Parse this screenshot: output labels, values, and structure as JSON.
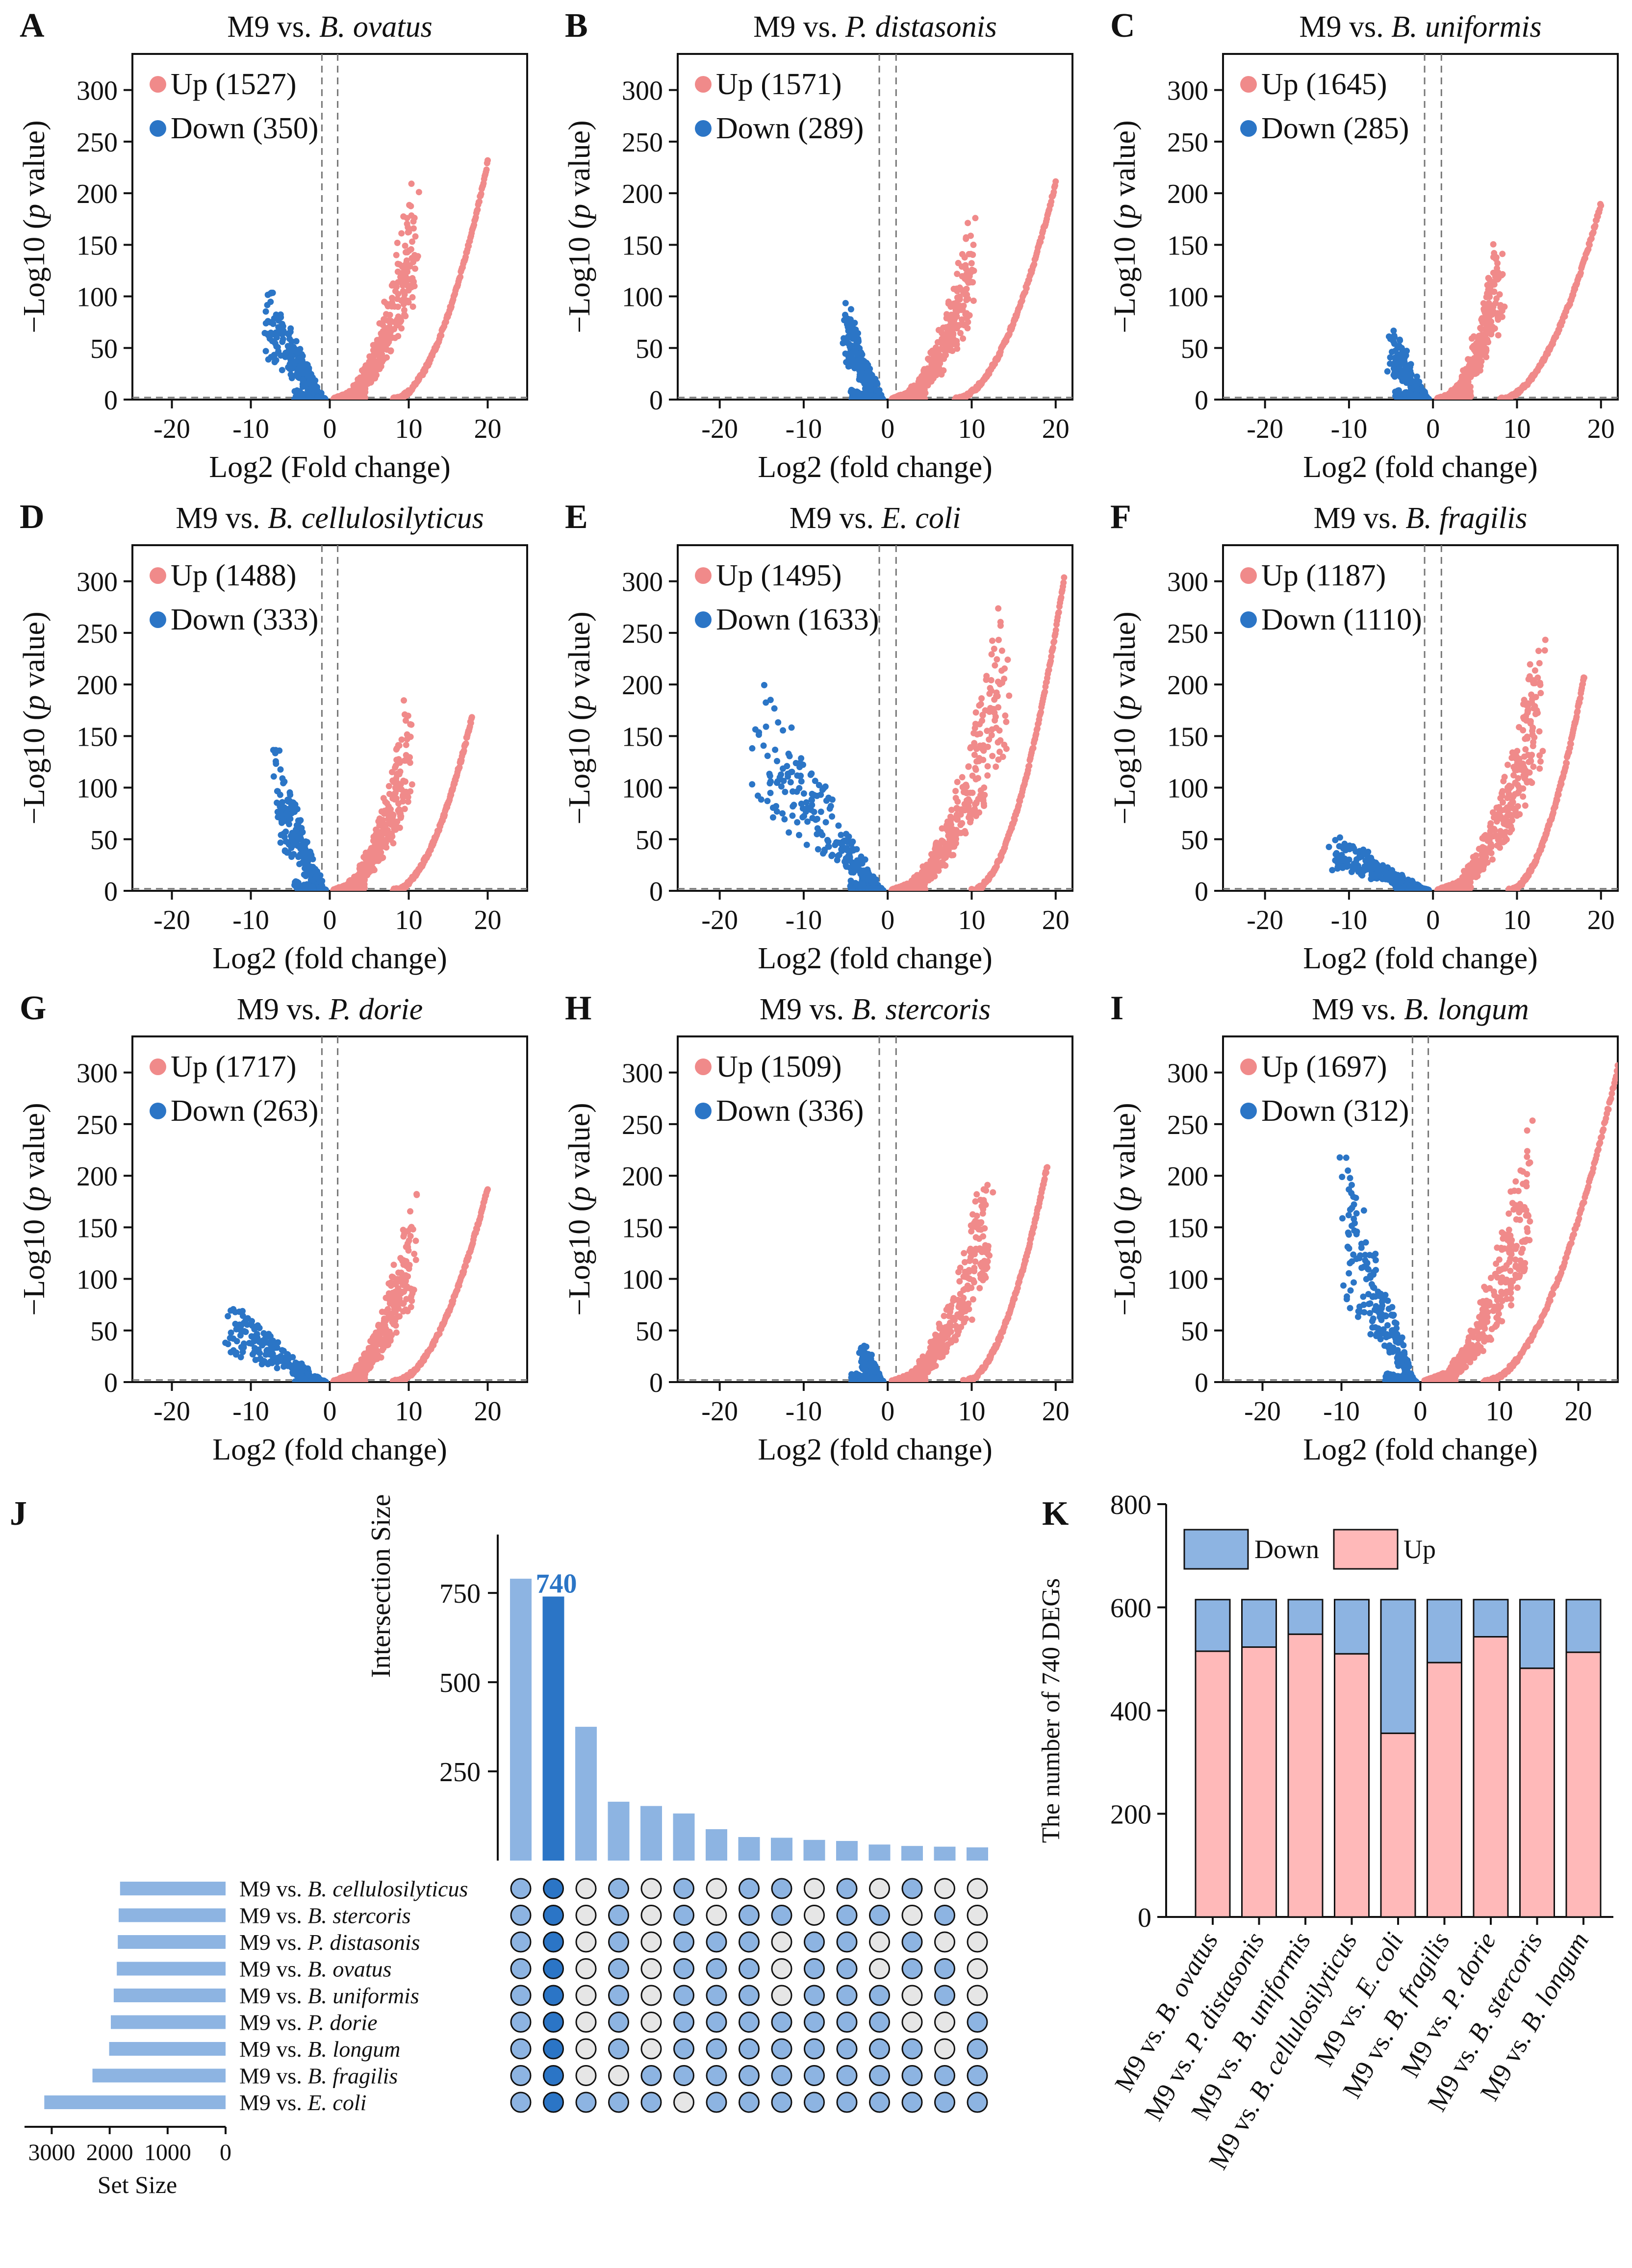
{
  "colors": {
    "up": "#f08a8a",
    "down": "#2b75c6",
    "bar_light": "#8db4e2",
    "bar_dark": "#2b75c6",
    "up_fill": "#ffb9b9",
    "down_fill": "#8db4e2",
    "dot_empty": "#e6e6e6"
  },
  "volcano_panels": [
    {
      "letter": "A",
      "prefix": "M9 vs. ",
      "species": "B. ovatus",
      "xlabel": "Log2 (Fold change)",
      "up_label": "Up (1527)",
      "down_label": "Down (350)",
      "up_count": 1527,
      "down_count": 350,
      "up_seed": 11,
      "down_seed": 12,
      "up_arm": {
        "x_start": 1.0,
        "x_end": 11.0,
        "max_y": 235
      },
      "up_curve": {
        "x_start": 8.0,
        "x_end": 20.0,
        "max_y": 230
      },
      "down_arm": {
        "x_start": -1.0,
        "x_end": -8.0,
        "max_y": 118
      }
    },
    {
      "letter": "B",
      "prefix": "M9 vs. ",
      "species": "P. distasonis",
      "xlabel": "Log2 (fold change)",
      "up_label": "Up (1571)",
      "down_label": "Down (289)",
      "up_count": 1571,
      "down_count": 289,
      "up_seed": 21,
      "down_seed": 22,
      "up_arm": {
        "x_start": 1.0,
        "x_end": 10.0,
        "max_y": 178
      },
      "up_curve": {
        "x_start": 8.0,
        "x_end": 20.0,
        "max_y": 210
      },
      "down_arm": {
        "x_start": -1.0,
        "x_end": -5.0,
        "max_y": 95
      }
    },
    {
      "letter": "C",
      "prefix": "M9 vs. ",
      "species": "B. uniformis",
      "xlabel": "Log2 (fold change)",
      "up_label": "Up (1645)",
      "down_label": "Down (285)",
      "up_count": 1645,
      "down_count": 285,
      "up_seed": 31,
      "down_seed": 32,
      "up_arm": {
        "x_start": 1.0,
        "x_end": 8.0,
        "max_y": 165
      },
      "up_curve": {
        "x_start": 8.0,
        "x_end": 20.0,
        "max_y": 190
      },
      "down_arm": {
        "x_start": -1.0,
        "x_end": -5.0,
        "max_y": 75
      }
    },
    {
      "letter": "D",
      "prefix": "M9 vs. ",
      "species": "B. cellulosilyticus",
      "xlabel": "Log2 (fold change)",
      "up_label": "Up (1488)",
      "down_label": "Down (333)",
      "up_count": 1488,
      "down_count": 333,
      "up_seed": 41,
      "down_seed": 42,
      "up_arm": {
        "x_start": 1.0,
        "x_end": 10.0,
        "max_y": 190
      },
      "up_curve": {
        "x_start": 8.0,
        "x_end": 18.0,
        "max_y": 168
      },
      "down_arm": {
        "x_start": -1.0,
        "x_end": -7.0,
        "max_y": 142
      }
    },
    {
      "letter": "E",
      "prefix": "M9 vs. ",
      "species": "E. coli",
      "xlabel": "Log2 (fold change)",
      "up_label": "Up (1495)",
      "down_label": "Down (1633)",
      "up_count": 1495,
      "down_count": 1633,
      "up_seed": 51,
      "down_seed": 52,
      "up_arm": {
        "x_start": 1.0,
        "x_end": 14.0,
        "max_y": 305
      },
      "up_curve": {
        "x_start": 10.0,
        "x_end": 21.0,
        "max_y": 302
      },
      "down_arm": {
        "x_start": -1.0,
        "x_end": -16.0,
        "max_y": 225
      }
    },
    {
      "letter": "F",
      "prefix": "M9 vs. ",
      "species": "B. fragilis",
      "xlabel": "Log2 (fold change)",
      "up_label": "Up (1187)",
      "down_label": "Down (1110)",
      "up_count": 1187,
      "down_count": 1110,
      "up_seed": 61,
      "down_seed": 62,
      "up_arm": {
        "x_start": 1.0,
        "x_end": 13.0,
        "max_y": 262
      },
      "up_curve": {
        "x_start": 9.0,
        "x_end": 18.0,
        "max_y": 208
      },
      "down_arm": {
        "x_start": -1.0,
        "x_end": -12.0,
        "max_y": 58
      }
    },
    {
      "letter": "G",
      "prefix": "M9 vs. ",
      "species": "P. dorie",
      "xlabel": "Log2 (fold change)",
      "up_label": "Up (1717)",
      "down_label": "Down (263)",
      "up_count": 1717,
      "down_count": 263,
      "up_seed": 71,
      "down_seed": 72,
      "up_arm": {
        "x_start": 1.0,
        "x_end": 11.0,
        "max_y": 197
      },
      "up_curve": {
        "x_start": 8.0,
        "x_end": 20.0,
        "max_y": 188
      },
      "down_arm": {
        "x_start": -1.0,
        "x_end": -13.0,
        "max_y": 80
      }
    },
    {
      "letter": "H",
      "prefix": "M9 vs. ",
      "species": "B. stercoris",
      "xlabel": "Log2 (fold change)",
      "up_label": "Up (1509)",
      "down_label": "Down (336)",
      "up_count": 1509,
      "down_count": 336,
      "up_seed": 81,
      "down_seed": 82,
      "up_arm": {
        "x_start": 1.0,
        "x_end": 12.0,
        "max_y": 222
      },
      "up_curve": {
        "x_start": 9.0,
        "x_end": 19.0,
        "max_y": 210
      },
      "down_arm": {
        "x_start": -1.0,
        "x_end": -3.0,
        "max_y": 38
      }
    },
    {
      "letter": "I",
      "prefix": "M9 vs. ",
      "species": "B. longum",
      "xlabel": "Log2 (fold change)",
      "up_label": "Up (1697)",
      "down_label": "Down (312)",
      "up_count": 1697,
      "down_count": 312,
      "up_seed": 91,
      "down_seed": 92,
      "up_arm": {
        "x_start": 1.0,
        "x_end": 14.0,
        "max_y": 270
      },
      "up_curve": {
        "x_start": 8.0,
        "x_end": 25.0,
        "max_y": 305
      },
      "down_arm": {
        "x_start": -1.0,
        "x_end": -10.0,
        "max_y": 228
      }
    }
  ],
  "chart_data": [
    {
      "type": "scatter",
      "panel": "A",
      "title": "M9 vs. B. ovatus",
      "xlabel": "Log2 (Fold change)",
      "ylabel": "−Log10 (p value)",
      "xlim": [
        -25,
        25
      ],
      "ylim": [
        0,
        335
      ],
      "xticks": [
        -20,
        -10,
        0,
        10,
        20
      ],
      "yticks": [
        0,
        50,
        100,
        150,
        200,
        250,
        300
      ],
      "vlines": [
        -1,
        1
      ],
      "hline": 2,
      "series": [
        {
          "name": "Up",
          "count": 1527
        },
        {
          "name": "Down",
          "count": 350
        }
      ]
    },
    {
      "type": "scatter",
      "panel": "B",
      "title": "M9 vs. P. distasonis",
      "xlabel": "Log2 (fold change)",
      "ylabel": "−Log10 (p value)",
      "xlim": [
        -25,
        22
      ],
      "ylim": [
        0,
        335
      ],
      "xticks": [
        -20,
        -10,
        0,
        10,
        20
      ],
      "yticks": [
        0,
        50,
        100,
        150,
        200,
        250,
        300
      ],
      "vlines": [
        -1,
        1
      ],
      "hline": 2,
      "series": [
        {
          "name": "Up",
          "count": 1571
        },
        {
          "name": "Down",
          "count": 289
        }
      ]
    },
    {
      "type": "scatter",
      "panel": "C",
      "title": "M9 vs. B. uniformis",
      "xlabel": "Log2 (fold change)",
      "ylabel": "−Log10 (p value)",
      "xlim": [
        -25,
        22
      ],
      "ylim": [
        0,
        335
      ],
      "xticks": [
        -20,
        -10,
        0,
        10,
        20
      ],
      "yticks": [
        0,
        50,
        100,
        150,
        200,
        250,
        300
      ],
      "vlines": [
        -1,
        1
      ],
      "hline": 2,
      "series": [
        {
          "name": "Up",
          "count": 1645
        },
        {
          "name": "Down",
          "count": 285
        }
      ]
    },
    {
      "type": "scatter",
      "panel": "D",
      "title": "M9 vs. B. cellulosilyticus",
      "xlabel": "Log2 (fold change)",
      "ylabel": "−Log10 (p value)",
      "xlim": [
        -25,
        25
      ],
      "ylim": [
        0,
        335
      ],
      "xticks": [
        -20,
        -10,
        0,
        10,
        20
      ],
      "yticks": [
        0,
        50,
        100,
        150,
        200,
        250,
        300
      ],
      "vlines": [
        -1,
        1
      ],
      "hline": 2,
      "series": [
        {
          "name": "Up",
          "count": 1488
        },
        {
          "name": "Down",
          "count": 333
        }
      ]
    },
    {
      "type": "scatter",
      "panel": "E",
      "title": "M9 vs. E. coli",
      "xlabel": "Log2 (fold change)",
      "ylabel": "−Log10 (p value)",
      "xlim": [
        -25,
        22
      ],
      "ylim": [
        0,
        335
      ],
      "xticks": [
        -20,
        -10,
        0,
        10,
        20
      ],
      "yticks": [
        0,
        50,
        100,
        150,
        200,
        250,
        300
      ],
      "vlines": [
        -1,
        1
      ],
      "hline": 2,
      "series": [
        {
          "name": "Up",
          "count": 1495
        },
        {
          "name": "Down",
          "count": 1633
        }
      ]
    },
    {
      "type": "scatter",
      "panel": "F",
      "title": "M9 vs. B. fragilis",
      "xlabel": "Log2 (fold change)",
      "ylabel": "−Log10 (p value)",
      "xlim": [
        -25,
        22
      ],
      "ylim": [
        0,
        335
      ],
      "xticks": [
        -20,
        -10,
        0,
        10,
        20
      ],
      "yticks": [
        0,
        50,
        100,
        150,
        200,
        250,
        300
      ],
      "vlines": [
        -1,
        1
      ],
      "hline": 2,
      "series": [
        {
          "name": "Up",
          "count": 1187
        },
        {
          "name": "Down",
          "count": 1110
        }
      ]
    },
    {
      "type": "scatter",
      "panel": "G",
      "title": "M9 vs. P. dorie",
      "xlabel": "Log2 (fold change)",
      "ylabel": "−Log10 (p value)",
      "xlim": [
        -25,
        25
      ],
      "ylim": [
        0,
        335
      ],
      "xticks": [
        -20,
        -10,
        0,
        10,
        20
      ],
      "yticks": [
        0,
        50,
        100,
        150,
        200,
        250,
        300
      ],
      "vlines": [
        -1,
        1
      ],
      "hline": 2,
      "series": [
        {
          "name": "Up",
          "count": 1717
        },
        {
          "name": "Down",
          "count": 263
        }
      ]
    },
    {
      "type": "scatter",
      "panel": "H",
      "title": "M9 vs. B. stercoris",
      "xlabel": "Log2 (fold change)",
      "ylabel": "−Log10 (p value)",
      "xlim": [
        -25,
        22
      ],
      "ylim": [
        0,
        335
      ],
      "xticks": [
        -20,
        -10,
        0,
        10,
        20
      ],
      "yticks": [
        0,
        50,
        100,
        150,
        200,
        250,
        300
      ],
      "vlines": [
        -1,
        1
      ],
      "hline": 2,
      "series": [
        {
          "name": "Up",
          "count": 1509
        },
        {
          "name": "Down",
          "count": 336
        }
      ]
    },
    {
      "type": "scatter",
      "panel": "I",
      "title": "M9 vs. B. longum",
      "xlabel": "Log2 (fold change)",
      "ylabel": "−Log10 (p value)",
      "xlim": [
        -25,
        25
      ],
      "ylim": [
        0,
        335
      ],
      "xticks": [
        -20,
        -10,
        0,
        10,
        20
      ],
      "yticks": [
        0,
        50,
        100,
        150,
        200,
        250,
        300
      ],
      "vlines": [
        -1,
        1
      ],
      "hline": 2,
      "series": [
        {
          "name": "Up",
          "count": 1697
        },
        {
          "name": "Down",
          "count": 312
        }
      ]
    },
    {
      "type": "bar",
      "panel": "J",
      "subtype": "upset",
      "ylabel": "Intersection Size",
      "set_size_label": "Set Size",
      "highlight_label": "740",
      "highlight_index": 1,
      "yticks": [
        250,
        500,
        750
      ],
      "ylim": [
        0,
        900
      ],
      "set_size_ticks": [
        3000,
        2000,
        1000,
        0
      ],
      "set_size_max": 3300,
      "intersections": [
        790,
        740,
        375,
        165,
        153,
        132,
        88,
        66,
        64,
        58,
        55,
        45,
        41,
        39,
        37
      ],
      "sets": [
        {
          "prefix": "M9 vs. ",
          "species": "B. cellulosilyticus",
          "size": 1821
        },
        {
          "prefix": "M9 vs. ",
          "species": "B. stercoris",
          "size": 1845
        },
        {
          "prefix": "M9 vs. ",
          "species": "P. distasonis",
          "size": 1860
        },
        {
          "prefix": "M9 vs. ",
          "species": "B. ovatus",
          "size": 1877
        },
        {
          "prefix": "M9 vs. ",
          "species": "B. uniformis",
          "size": 1930
        },
        {
          "prefix": "M9 vs. ",
          "species": "P. dorie",
          "size": 1980
        },
        {
          "prefix": "M9 vs. ",
          "species": "B. longum",
          "size": 2009
        },
        {
          "prefix": "M9 vs. ",
          "species": "B. fragilis",
          "size": 2297
        },
        {
          "prefix": "M9 vs. ",
          "species": "E. coli",
          "size": 3128
        }
      ],
      "matrix": [
        [
          1,
          1,
          0,
          1,
          0,
          1,
          0,
          1,
          1,
          0,
          1,
          0,
          1,
          0,
          0
        ],
        [
          1,
          1,
          0,
          1,
          0,
          1,
          0,
          1,
          1,
          0,
          1,
          1,
          0,
          1,
          0
        ],
        [
          1,
          1,
          0,
          1,
          0,
          1,
          1,
          1,
          0,
          1,
          1,
          0,
          1,
          0,
          0
        ],
        [
          1,
          1,
          0,
          1,
          0,
          1,
          1,
          1,
          0,
          1,
          1,
          0,
          1,
          1,
          0
        ],
        [
          1,
          1,
          0,
          1,
          0,
          1,
          1,
          1,
          0,
          1,
          1,
          1,
          0,
          1,
          0
        ],
        [
          1,
          1,
          0,
          1,
          0,
          1,
          1,
          1,
          1,
          1,
          1,
          1,
          0,
          0,
          1
        ],
        [
          1,
          1,
          0,
          1,
          0,
          1,
          1,
          1,
          1,
          1,
          1,
          1,
          1,
          0,
          1
        ],
        [
          1,
          1,
          0,
          0,
          1,
          1,
          1,
          1,
          1,
          1,
          1,
          1,
          1,
          1,
          1
        ],
        [
          1,
          1,
          1,
          1,
          1,
          0,
          1,
          1,
          1,
          1,
          1,
          1,
          1,
          1,
          1
        ]
      ]
    },
    {
      "type": "bar",
      "panel": "K",
      "subtype": "stacked",
      "ylabel": "The number of 740 DEGs",
      "ylim": [
        0,
        800
      ],
      "yticks": [
        0,
        200,
        400,
        600,
        800
      ],
      "legend": [
        "Down",
        "Up"
      ],
      "categories": [
        {
          "prefix": "M9 vs. ",
          "species": "B. ovatus"
        },
        {
          "prefix": "M9 vs. ",
          "species": "P. distasonis"
        },
        {
          "prefix": "M9 vs. ",
          "species": "B. uniformis"
        },
        {
          "prefix": "M9 vs. ",
          "species": "B. cellulosilyticus"
        },
        {
          "prefix": "M9 vs. ",
          "species": "E. coli"
        },
        {
          "prefix": "M9 vs. ",
          "species": "B. fragilis"
        },
        {
          "prefix": "M9 vs. ",
          "species": "P. dorie"
        },
        {
          "prefix": "M9 vs. ",
          "species": "B. stercoris"
        },
        {
          "prefix": "M9 vs. ",
          "species": "B. longum"
        }
      ],
      "series": [
        {
          "name": "Up",
          "values": [
            515,
            523,
            548,
            510,
            356,
            493,
            543,
            482,
            513
          ]
        },
        {
          "name": "Down",
          "values": [
            100,
            92,
            67,
            105,
            259,
            122,
            72,
            133,
            102
          ]
        }
      ]
    }
  ],
  "upset_letter": "J",
  "stacked_letter": "K"
}
